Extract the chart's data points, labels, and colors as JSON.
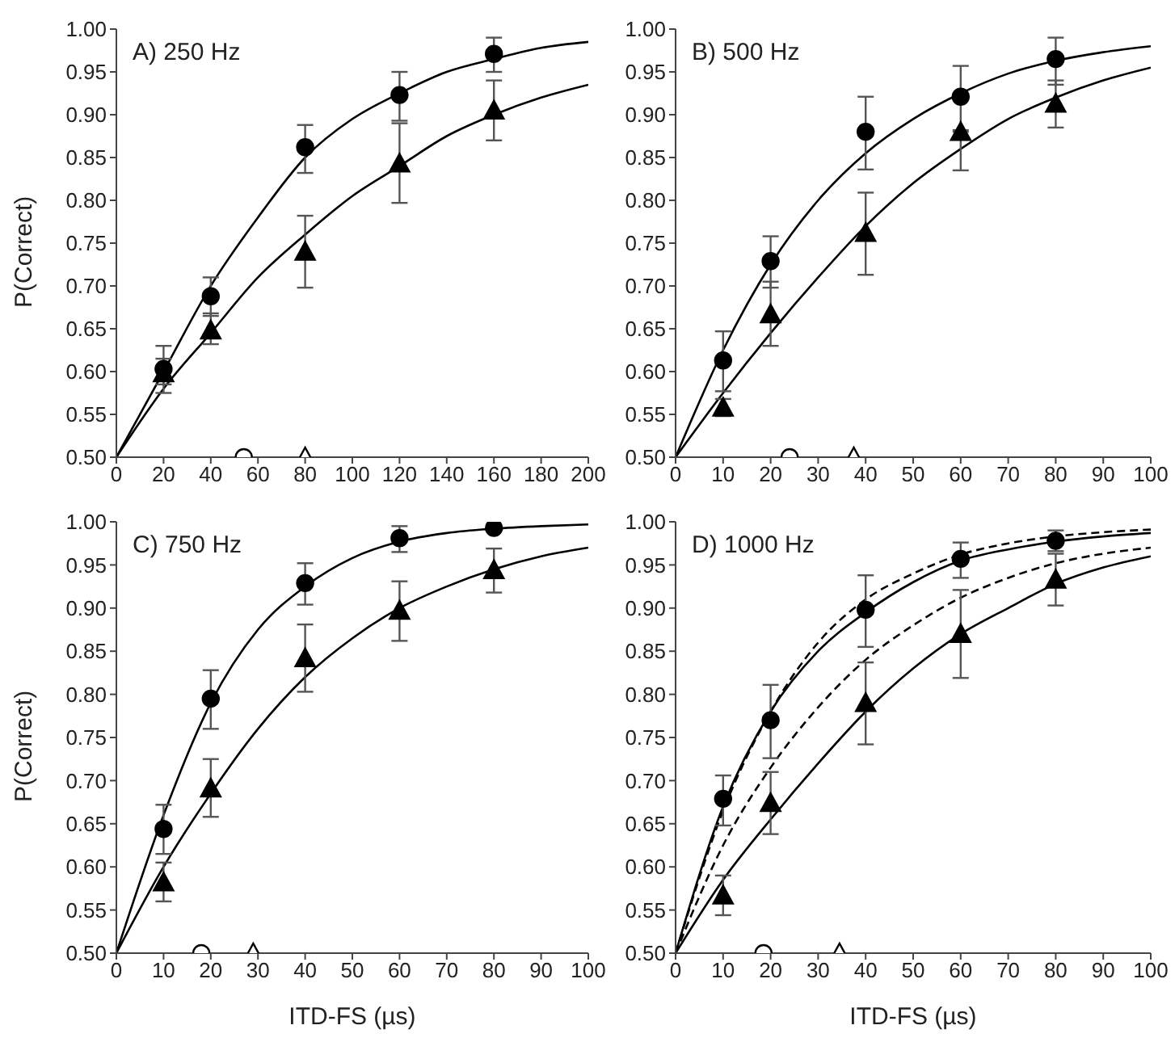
{
  "chart_data": [
    {
      "type": "scatter",
      "title": "A) 250 Hz",
      "ylabel": "P(Correct)",
      "xlim": [
        0,
        200
      ],
      "xticks": [
        0,
        20,
        40,
        60,
        80,
        100,
        120,
        140,
        160,
        180,
        200
      ],
      "ylim": [
        0.5,
        1
      ],
      "yticks": [
        {
          "value": 0.5,
          "label": "0.50"
        },
        {
          "value": 0.55,
          "label": "0.55"
        },
        {
          "value": 0.6,
          "label": "0.60"
        },
        {
          "value": 0.65,
          "label": "0.65"
        },
        {
          "value": 0.7,
          "label": "0.70"
        },
        {
          "value": 0.75,
          "label": "0.75"
        },
        {
          "value": 0.8,
          "label": "0.80"
        },
        {
          "value": 0.85,
          "label": "0.85"
        },
        {
          "value": 0.9,
          "label": "0.90"
        },
        {
          "value": 0.95,
          "label": "0.95"
        },
        {
          "value": 1,
          "label": "1.00"
        }
      ],
      "grid": false,
      "series": [
        {
          "type": "line",
          "color": "#000000",
          "line_style": "solid",
          "marker": "none",
          "x": [
            0,
            20,
            40,
            60,
            80,
            100,
            120,
            140,
            160,
            180,
            200
          ],
          "values": [
            0.5,
            0.6,
            0.7,
            0.78,
            0.85,
            0.895,
            0.925,
            0.95,
            0.965,
            0.978,
            0.985
          ]
        },
        {
          "type": "line",
          "color": "#000000",
          "line_style": "solid",
          "marker": "none",
          "x": [
            0,
            20,
            40,
            60,
            80,
            100,
            120,
            140,
            160,
            180,
            200
          ],
          "values": [
            0.5,
            0.58,
            0.645,
            0.71,
            0.76,
            0.805,
            0.84,
            0.875,
            0.9,
            0.92,
            0.935
          ]
        },
        {
          "type": "scatter",
          "color": "#000000",
          "marker": "circle",
          "x": [
            20,
            40,
            80,
            120,
            160
          ],
          "values": [
            0.603,
            0.688,
            0.862,
            0.923,
            0.971
          ],
          "errors": [
            [
              0.575,
              0.63
            ],
            [
              0.665,
              0.71
            ],
            [
              0.832,
              0.888
            ],
            [
              0.893,
              0.95
            ],
            [
              0.95,
              0.99
            ]
          ]
        },
        {
          "type": "scatter",
          "color": "#000000",
          "marker": "triangle",
          "x": [
            20,
            40,
            80,
            120,
            160
          ],
          "values": [
            0.598,
            0.648,
            0.74,
            0.843,
            0.905
          ],
          "errors": [
            [
              0.585,
              0.615
            ],
            [
              0.632,
              0.668
            ],
            [
              0.698,
              0.782
            ],
            [
              0.797,
              0.89
            ],
            [
              0.87,
              0.94
            ]
          ]
        },
        {
          "type": "scatter",
          "color": "#ffffff",
          "marker": "circle",
          "x": [
            54
          ],
          "values": [
            0.5
          ]
        },
        {
          "type": "scatter",
          "color": "#ffffff",
          "marker": "triangle",
          "x": [
            80
          ],
          "values": [
            0.5
          ]
        }
      ]
    },
    {
      "type": "scatter",
      "title": "B) 500 Hz",
      "xlim": [
        0,
        100
      ],
      "xticks": [
        0,
        10,
        20,
        30,
        40,
        50,
        60,
        70,
        80,
        90,
        100
      ],
      "ylim": [
        0.5,
        1
      ],
      "yticks": [
        {
          "value": 0.5,
          "label": "0.50"
        },
        {
          "value": 0.55,
          "label": "0.55"
        },
        {
          "value": 0.6,
          "label": "0.60"
        },
        {
          "value": 0.65,
          "label": "0.65"
        },
        {
          "value": 0.7,
          "label": "0.70"
        },
        {
          "value": 0.75,
          "label": "0.75"
        },
        {
          "value": 0.8,
          "label": "0.80"
        },
        {
          "value": 0.85,
          "label": "0.85"
        },
        {
          "value": 0.9,
          "label": "0.90"
        },
        {
          "value": 0.95,
          "label": "0.95"
        },
        {
          "value": 1,
          "label": "1.00"
        }
      ],
      "grid": false,
      "series": [
        {
          "type": "line",
          "color": "#000000",
          "line_style": "solid",
          "marker": "none",
          "x": [
            0,
            10,
            20,
            30,
            40,
            50,
            60,
            70,
            80,
            90,
            100
          ],
          "values": [
            0.5,
            0.625,
            0.725,
            0.8,
            0.855,
            0.895,
            0.925,
            0.948,
            0.963,
            0.973,
            0.98
          ]
        },
        {
          "type": "line",
          "color": "#000000",
          "line_style": "solid",
          "marker": "none",
          "x": [
            0,
            10,
            20,
            30,
            40,
            50,
            60,
            70,
            80,
            90,
            100
          ],
          "values": [
            0.5,
            0.575,
            0.645,
            0.71,
            0.77,
            0.82,
            0.86,
            0.895,
            0.92,
            0.94,
            0.955
          ]
        },
        {
          "type": "scatter",
          "color": "#000000",
          "marker": "circle",
          "x": [
            10,
            20,
            40,
            60,
            80
          ],
          "values": [
            0.613,
            0.729,
            0.88,
            0.921,
            0.965
          ],
          "errors": [
            [
              0.577,
              0.647
            ],
            [
              0.698,
              0.758
            ],
            [
              0.836,
              0.921
            ],
            [
              0.882,
              0.957
            ],
            [
              0.935,
              0.99
            ]
          ]
        },
        {
          "type": "scatter",
          "color": "#000000",
          "marker": "triangle",
          "x": [
            10,
            20,
            40,
            60,
            80
          ],
          "values": [
            0.558,
            0.667,
            0.762,
            0.88,
            0.913
          ],
          "errors": [
            [
              0.548,
              0.568
            ],
            [
              0.63,
              0.705
            ],
            [
              0.713,
              0.809
            ],
            [
              0.835,
              0.88
            ],
            [
              0.885,
              0.94
            ]
          ]
        },
        {
          "type": "scatter",
          "color": "#ffffff",
          "marker": "circle",
          "x": [
            24
          ],
          "values": [
            0.5
          ]
        },
        {
          "type": "scatter",
          "color": "#ffffff",
          "marker": "triangle",
          "x": [
            37.5
          ],
          "values": [
            0.5
          ]
        }
      ]
    },
    {
      "type": "scatter",
      "title": "C) 750 Hz",
      "xlabel": "ITD-FS (µs)",
      "ylabel": "P(Correct)",
      "xlim": [
        0,
        100
      ],
      "xticks": [
        0,
        10,
        20,
        30,
        40,
        50,
        60,
        70,
        80,
        90,
        100
      ],
      "ylim": [
        0.5,
        1
      ],
      "yticks": [
        {
          "value": 0.5,
          "label": "0.50"
        },
        {
          "value": 0.55,
          "label": "0.55"
        },
        {
          "value": 0.6,
          "label": "0.60"
        },
        {
          "value": 0.65,
          "label": "0.65"
        },
        {
          "value": 0.7,
          "label": "0.70"
        },
        {
          "value": 0.75,
          "label": "0.75"
        },
        {
          "value": 0.8,
          "label": "0.80"
        },
        {
          "value": 0.85,
          "label": "0.85"
        },
        {
          "value": 0.9,
          "label": "0.90"
        },
        {
          "value": 0.95,
          "label": "0.95"
        },
        {
          "value": 1,
          "label": "1.00"
        }
      ],
      "grid": false,
      "series": [
        {
          "type": "line",
          "color": "#000000",
          "line_style": "solid",
          "marker": "none",
          "x": [
            0,
            10,
            20,
            30,
            40,
            50,
            60,
            70,
            80,
            90,
            100
          ],
          "values": [
            0.5,
            0.66,
            0.79,
            0.875,
            0.925,
            0.958,
            0.977,
            0.987,
            0.992,
            0.995,
            0.997
          ]
        },
        {
          "type": "line",
          "color": "#000000",
          "line_style": "solid",
          "marker": "none",
          "x": [
            0,
            10,
            20,
            30,
            40,
            50,
            60,
            70,
            80,
            90,
            100
          ],
          "values": [
            0.5,
            0.6,
            0.685,
            0.76,
            0.82,
            0.865,
            0.9,
            0.925,
            0.945,
            0.96,
            0.97
          ]
        },
        {
          "type": "scatter",
          "color": "#000000",
          "marker": "circle",
          "x": [
            10,
            20,
            40,
            60,
            80
          ],
          "values": [
            0.644,
            0.795,
            0.929,
            0.981,
            0.993
          ],
          "errors": [
            [
              0.615,
              0.672
            ],
            [
              0.76,
              0.828
            ],
            [
              0.904,
              0.952
            ],
            [
              0.965,
              0.995
            ],
            null
          ]
        },
        {
          "type": "scatter",
          "color": "#000000",
          "marker": "triangle",
          "x": [
            10,
            20,
            40,
            60,
            80
          ],
          "values": [
            0.582,
            0.691,
            0.842,
            0.897,
            0.944
          ],
          "errors": [
            [
              0.56,
              0.605
            ],
            [
              0.658,
              0.725
            ],
            [
              0.803,
              0.881
            ],
            [
              0.862,
              0.931
            ],
            [
              0.918,
              0.969
            ]
          ]
        },
        {
          "type": "scatter",
          "color": "#ffffff",
          "marker": "circle",
          "x": [
            18
          ],
          "values": [
            0.5
          ]
        },
        {
          "type": "scatter",
          "color": "#ffffff",
          "marker": "triangle",
          "x": [
            29
          ],
          "values": [
            0.5
          ]
        }
      ]
    },
    {
      "type": "scatter",
      "title": "D) 1000 Hz",
      "xlabel": "ITD-FS (µs)",
      "xlim": [
        0,
        100
      ],
      "xticks": [
        0,
        10,
        20,
        30,
        40,
        50,
        60,
        70,
        80,
        90,
        100
      ],
      "ylim": [
        0.5,
        1
      ],
      "yticks": [
        {
          "value": 0.5,
          "label": "0.50"
        },
        {
          "value": 0.55,
          "label": "0.55"
        },
        {
          "value": 0.6,
          "label": "0.60"
        },
        {
          "value": 0.65,
          "label": "0.65"
        },
        {
          "value": 0.7,
          "label": "0.70"
        },
        {
          "value": 0.75,
          "label": "0.75"
        },
        {
          "value": 0.8,
          "label": "0.80"
        },
        {
          "value": 0.85,
          "label": "0.85"
        },
        {
          "value": 0.9,
          "label": "0.90"
        },
        {
          "value": 0.95,
          "label": "0.95"
        },
        {
          "value": 1,
          "label": "1.00"
        }
      ],
      "grid": false,
      "series": [
        {
          "type": "line",
          "color": "#000000",
          "line_style": "solid",
          "marker": "none",
          "x": [
            0,
            10,
            20,
            30,
            40,
            50,
            60,
            70,
            80,
            90,
            100
          ],
          "values": [
            0.5,
            0.67,
            0.78,
            0.85,
            0.895,
            0.93,
            0.955,
            0.968,
            0.977,
            0.983,
            0.987
          ]
        },
        {
          "type": "line",
          "color": "#000000",
          "line_style": "dashed",
          "marker": "none",
          "x": [
            0,
            10,
            20,
            30,
            40,
            50,
            60,
            70,
            80,
            90,
            100
          ],
          "values": [
            0.5,
            0.665,
            0.78,
            0.86,
            0.91,
            0.94,
            0.962,
            0.975,
            0.983,
            0.988,
            0.991
          ]
        },
        {
          "type": "line",
          "color": "#000000",
          "line_style": "solid",
          "marker": "none",
          "x": [
            0,
            10,
            20,
            30,
            40,
            50,
            60,
            70,
            80,
            90,
            100
          ],
          "values": [
            0.5,
            0.585,
            0.655,
            0.72,
            0.78,
            0.83,
            0.87,
            0.9,
            0.928,
            0.947,
            0.96
          ]
        },
        {
          "type": "line",
          "color": "#000000",
          "line_style": "dashed",
          "marker": "none",
          "x": [
            0,
            10,
            20,
            30,
            40,
            50,
            60,
            70,
            80,
            90,
            100
          ],
          "values": [
            0.5,
            0.625,
            0.715,
            0.785,
            0.84,
            0.88,
            0.912,
            0.935,
            0.952,
            0.963,
            0.97
          ]
        },
        {
          "type": "scatter",
          "color": "#000000",
          "marker": "circle",
          "x": [
            10,
            20,
            40,
            60,
            80
          ],
          "values": [
            0.679,
            0.77,
            0.898,
            0.957,
            0.978
          ],
          "errors": [
            [
              0.648,
              0.706
            ],
            [
              0.726,
              0.811
            ],
            [
              0.855,
              0.938
            ],
            [
              0.935,
              0.976
            ],
            [
              0.966,
              0.99
            ]
          ]
        },
        {
          "type": "scatter",
          "color": "#000000",
          "marker": "triangle",
          "x": [
            10,
            20,
            40,
            60,
            80
          ],
          "values": [
            0.567,
            0.674,
            0.79,
            0.87,
            0.933
          ],
          "errors": [
            [
              0.544,
              0.59
            ],
            [
              0.638,
              0.71
            ],
            [
              0.742,
              0.837
            ],
            [
              0.819,
              0.921
            ],
            [
              0.903,
              0.963
            ]
          ]
        },
        {
          "type": "scatter",
          "color": "#ffffff",
          "marker": "circle",
          "x": [
            18.5
          ],
          "values": [
            0.5
          ]
        },
        {
          "type": "scatter",
          "color": "#ffffff",
          "marker": "triangle",
          "x": [
            34.5
          ],
          "values": [
            0.5
          ]
        }
      ]
    }
  ]
}
